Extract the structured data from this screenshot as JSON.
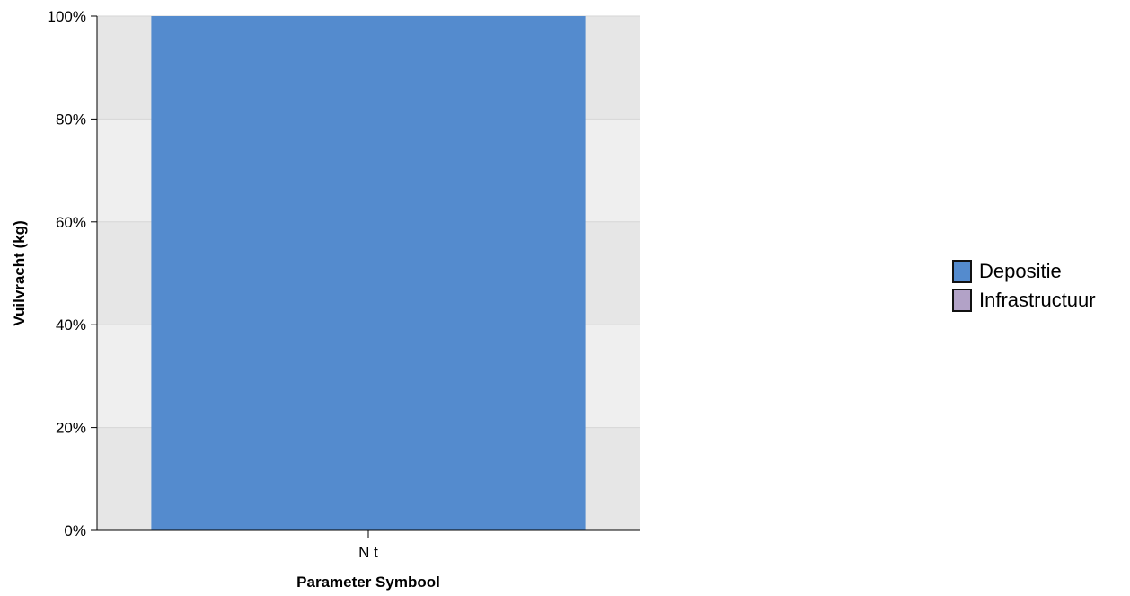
{
  "chart_data": {
    "type": "bar",
    "stacked": true,
    "normalized_percent": true,
    "categories": [
      "N t"
    ],
    "series": [
      {
        "name": "Depositie",
        "values": [
          100
        ],
        "color": "#548bce"
      },
      {
        "name": "Infrastructuur",
        "values": [
          0
        ],
        "color": "#b2a2c7"
      }
    ],
    "xlabel": "Parameter Symbool",
    "ylabel": "Vuilvracht (kg)",
    "ylim": [
      0,
      100
    ],
    "y_ticks": [
      "0%",
      "20%",
      "40%",
      "60%",
      "80%",
      "100%"
    ],
    "grid": true,
    "band_colors": [
      "#e6e6e6",
      "#efefef"
    ],
    "legend_position": "right"
  }
}
